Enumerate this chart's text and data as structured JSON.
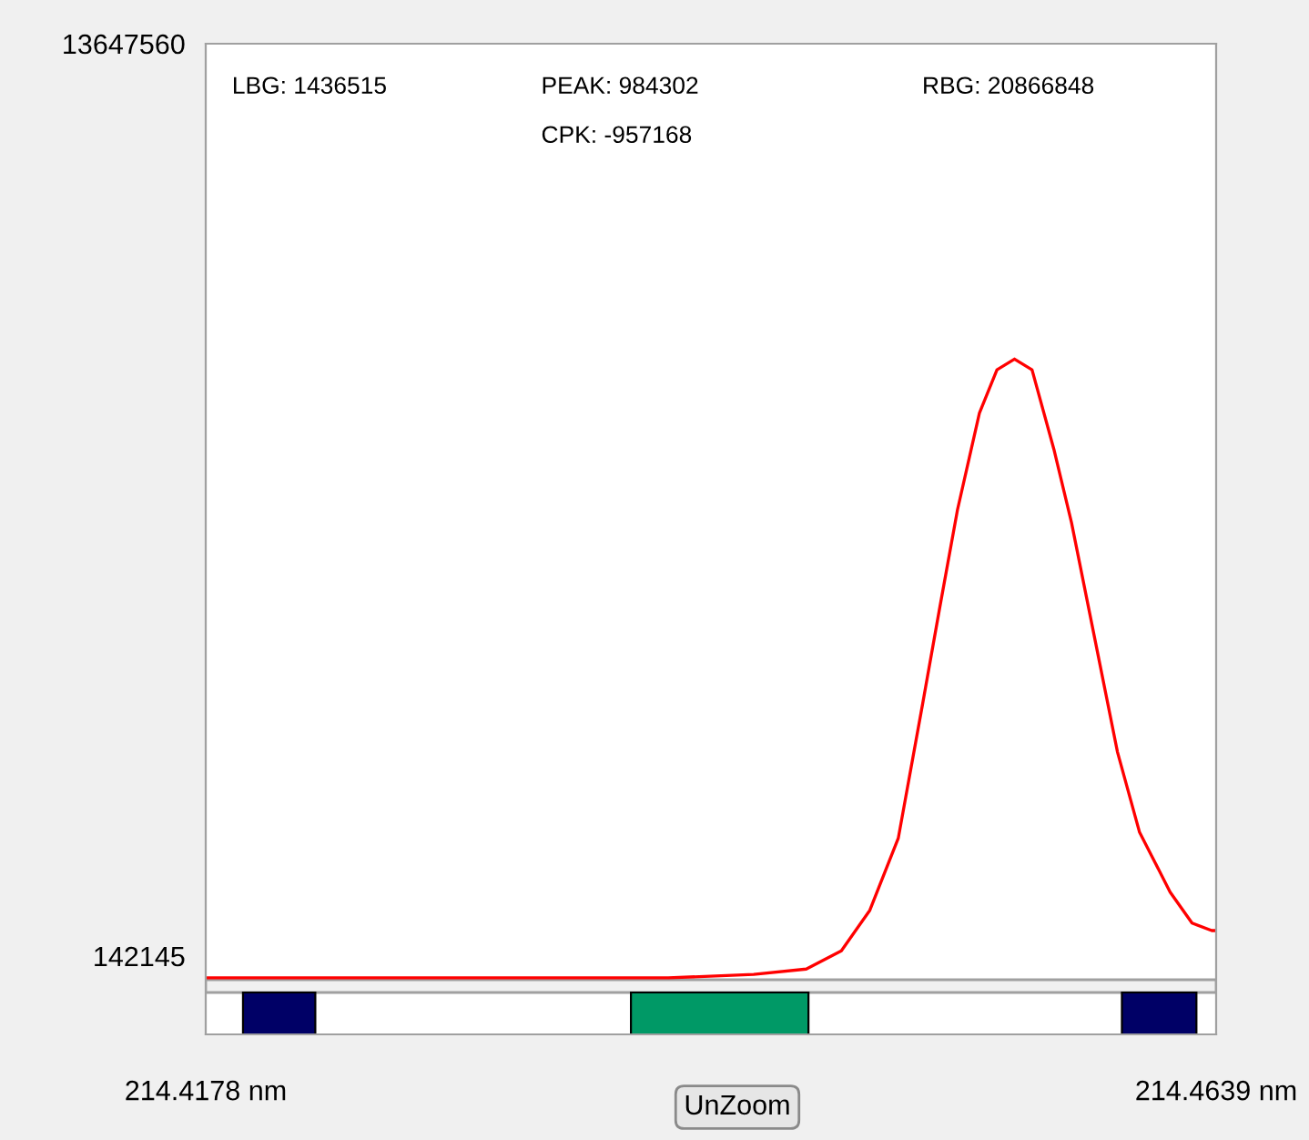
{
  "chart_data": {
    "type": "line",
    "x": [
      214.4178,
      214.4286,
      214.4389,
      214.4428,
      214.4452,
      214.4468,
      214.4481,
      214.4494,
      214.4505,
      214.4513,
      214.4521,
      214.4531,
      214.4539,
      214.4547,
      214.4555,
      214.4565,
      214.4573,
      214.4584,
      214.4594,
      214.4604,
      214.4618,
      214.4628,
      214.4637,
      214.4639
    ],
    "series": [
      {
        "color": "#ff0000",
        "values": [
          -180000,
          -180000,
          -180000,
          -130000,
          -50000,
          220000,
          820000,
          1890000,
          3860000,
          5320000,
          6750000,
          8180000,
          8820000,
          8980000,
          8820000,
          7640000,
          6560000,
          4780000,
          3160000,
          1980000,
          1090000,
          630000,
          520000,
          520000
        ]
      }
    ],
    "xlim": [
      214.4178,
      214.4639
    ],
    "xticks": [
      {
        "value": 214.4178,
        "label": "214.4178 nm"
      },
      {
        "value": 214.4639,
        "label": "214.4639 nm"
      }
    ],
    "ylim": [
      -1017000,
      13647560
    ],
    "yticks": [
      142145,
      13647560
    ],
    "bands": [
      {
        "axis": "x",
        "from": 214.4195,
        "to": 214.4228,
        "color": "#000066"
      },
      {
        "axis": "x",
        "from": 214.4372,
        "to": 214.4453,
        "color": "#009966"
      },
      {
        "axis": "x",
        "from": 214.4596,
        "to": 214.463,
        "color": "#000066"
      }
    ],
    "annotations": [
      "LBG: 1436515",
      "PEAK: 984302",
      "RBG: 20866848",
      "CPK: -957168",
      "UnZoom"
    ],
    "grid": false,
    "marker": "none",
    "line_style": "solid"
  }
}
